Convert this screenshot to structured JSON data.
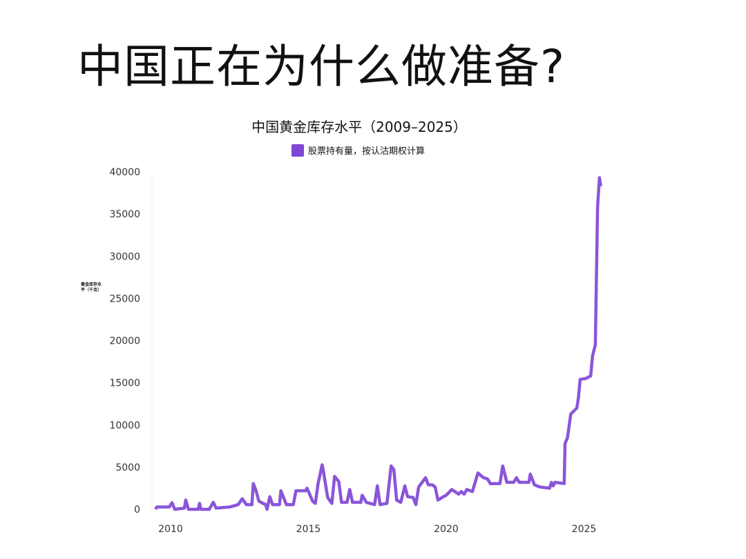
{
  "headline": "中国正在为什么做准备?",
  "chart_data": {
    "type": "line",
    "title": "中国黄金库存水平（2009–2025）",
    "ylabel": "黄金库存水平（千克）",
    "xlabel": "",
    "legend": "top-center",
    "grid": false,
    "ylim": [
      0,
      40000
    ],
    "xlim": [
      2009.4,
      2025.8
    ],
    "yticks": [
      0,
      5000,
      10000,
      15000,
      20000,
      25000,
      30000,
      35000,
      40000
    ],
    "xticks": [
      2010,
      2015,
      2020,
      2025
    ],
    "series": [
      {
        "name": "股票持有量，按认沽期权计算",
        "color": "#8046d6",
        "points": [
          [
            2009.45,
            0
          ],
          [
            2009.5,
            280
          ],
          [
            2009.95,
            280
          ],
          [
            2010.05,
            780
          ],
          [
            2010.15,
            0
          ],
          [
            2010.5,
            140
          ],
          [
            2010.55,
            1100
          ],
          [
            2010.65,
            0
          ],
          [
            2011.0,
            0
          ],
          [
            2011.05,
            700
          ],
          [
            2011.1,
            0
          ],
          [
            2011.4,
            0
          ],
          [
            2011.55,
            830
          ],
          [
            2011.65,
            140
          ],
          [
            2012.15,
            280
          ],
          [
            2012.45,
            560
          ],
          [
            2012.6,
            1250
          ],
          [
            2012.75,
            560
          ],
          [
            2012.95,
            560
          ],
          [
            2013.0,
            3050
          ],
          [
            2013.1,
            2200
          ],
          [
            2013.2,
            970
          ],
          [
            2013.35,
            700
          ],
          [
            2013.45,
            560
          ],
          [
            2013.5,
            0
          ],
          [
            2013.6,
            1500
          ],
          [
            2013.7,
            560
          ],
          [
            2013.95,
            560
          ],
          [
            2014.0,
            2200
          ],
          [
            2014.2,
            560
          ],
          [
            2014.45,
            560
          ],
          [
            2014.55,
            2200
          ],
          [
            2014.9,
            2200
          ],
          [
            2014.95,
            2500
          ],
          [
            2015.15,
            970
          ],
          [
            2015.25,
            700
          ],
          [
            2015.35,
            3050
          ],
          [
            2015.5,
            5280
          ],
          [
            2015.55,
            4400
          ],
          [
            2015.7,
            1400
          ],
          [
            2015.85,
            700
          ],
          [
            2015.95,
            3900
          ],
          [
            2016.1,
            3300
          ],
          [
            2016.2,
            830
          ],
          [
            2016.4,
            830
          ],
          [
            2016.5,
            2350
          ],
          [
            2016.6,
            830
          ],
          [
            2016.9,
            830
          ],
          [
            2016.95,
            1670
          ],
          [
            2017.1,
            830
          ],
          [
            2017.4,
            560
          ],
          [
            2017.5,
            2780
          ],
          [
            2017.6,
            560
          ],
          [
            2017.85,
            700
          ],
          [
            2018.0,
            5140
          ],
          [
            2018.1,
            4700
          ],
          [
            2018.2,
            1100
          ],
          [
            2018.35,
            830
          ],
          [
            2018.5,
            2780
          ],
          [
            2018.6,
            1500
          ],
          [
            2018.8,
            1400
          ],
          [
            2018.9,
            560
          ],
          [
            2019.0,
            2640
          ],
          [
            2019.25,
            3750
          ],
          [
            2019.35,
            2900
          ],
          [
            2019.5,
            2900
          ],
          [
            2019.6,
            2640
          ],
          [
            2019.7,
            1100
          ],
          [
            2019.9,
            1500
          ],
          [
            2020.0,
            1670
          ],
          [
            2020.2,
            2350
          ],
          [
            2020.45,
            1800
          ],
          [
            2020.55,
            2100
          ],
          [
            2020.65,
            1800
          ],
          [
            2020.75,
            2350
          ],
          [
            2020.95,
            2100
          ],
          [
            2021.05,
            3200
          ],
          [
            2021.15,
            4300
          ],
          [
            2021.35,
            3750
          ],
          [
            2021.5,
            3600
          ],
          [
            2021.6,
            3050
          ],
          [
            2021.95,
            3050
          ],
          [
            2022.05,
            5140
          ],
          [
            2022.2,
            3200
          ],
          [
            2022.45,
            3200
          ],
          [
            2022.55,
            3750
          ],
          [
            2022.65,
            3200
          ],
          [
            2023.0,
            3200
          ],
          [
            2023.05,
            4170
          ],
          [
            2023.2,
            2900
          ],
          [
            2023.4,
            2640
          ],
          [
            2023.75,
            2500
          ],
          [
            2023.82,
            3200
          ],
          [
            2023.88,
            2780
          ],
          [
            2023.95,
            3200
          ],
          [
            2024.28,
            3050
          ],
          [
            2024.31,
            7800
          ],
          [
            2024.4,
            8500
          ],
          [
            2024.52,
            11300
          ],
          [
            2024.74,
            12000
          ],
          [
            2024.8,
            13300
          ],
          [
            2024.86,
            15400
          ],
          [
            2025.06,
            15500
          ],
          [
            2025.24,
            15800
          ],
          [
            2025.31,
            18200
          ],
          [
            2025.41,
            19500
          ],
          [
            2025.49,
            35800
          ],
          [
            2025.56,
            39300
          ],
          [
            2025.61,
            38300
          ]
        ]
      }
    ]
  }
}
